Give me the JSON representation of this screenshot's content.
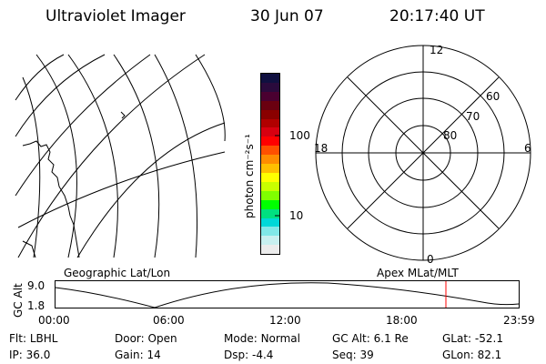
{
  "header": {
    "title": "Ultraviolet Imager",
    "date": "30 Jun 07",
    "time": "20:17:40 UT"
  },
  "colorbar": {
    "unit_label": "photon cm⁻²s⁻¹",
    "tick_labels": [
      "100",
      "10"
    ],
    "colors": [
      "#101040",
      "#2a0a3c",
      "#4a0030",
      "#6a0010",
      "#8a0000",
      "#b00000",
      "#d80010",
      "#ff0000",
      "#ff5000",
      "#ff8c00",
      "#ffbf00",
      "#ffff00",
      "#c8ff00",
      "#80ff00",
      "#00ff00",
      "#00e080",
      "#00d8d8",
      "#80e8e8",
      "#c8f0f0",
      "#ececec"
    ]
  },
  "polar": {
    "mlt_labels": {
      "top": "12",
      "right": "6",
      "bottom": "0",
      "left": "18"
    },
    "lat_labels": [
      "80",
      "70",
      "60"
    ]
  },
  "map_labels": {
    "left": "Geographic Lat/Lon",
    "right": "Apex MLat/MLT"
  },
  "altitude_plot": {
    "ylabel": "GC Alt",
    "y_ticks": [
      "9.0",
      "1.8"
    ],
    "x_ticks": [
      "00:00",
      "06:00",
      "12:00",
      "18:00",
      "23:59"
    ],
    "current_time_marker_color": "#ff0000"
  },
  "info": {
    "row1": [
      {
        "key": "Flt:",
        "val": "LBHL"
      },
      {
        "key": "Door:",
        "val": "Open"
      },
      {
        "key": "Mode:",
        "val": "Normal"
      },
      {
        "key": "GC Alt:",
        "val": "6.1 Re"
      },
      {
        "key": "GLat:",
        "val": "-52.1"
      }
    ],
    "row2": [
      {
        "key": "IP:",
        "val": "36.0"
      },
      {
        "key": "Gain:",
        "val": "14"
      },
      {
        "key": "Dsp:",
        "val": "-4.4"
      },
      {
        "key": "Seq:",
        "val": "39"
      },
      {
        "key": "GLon:",
        "val": "82.1"
      }
    ]
  }
}
